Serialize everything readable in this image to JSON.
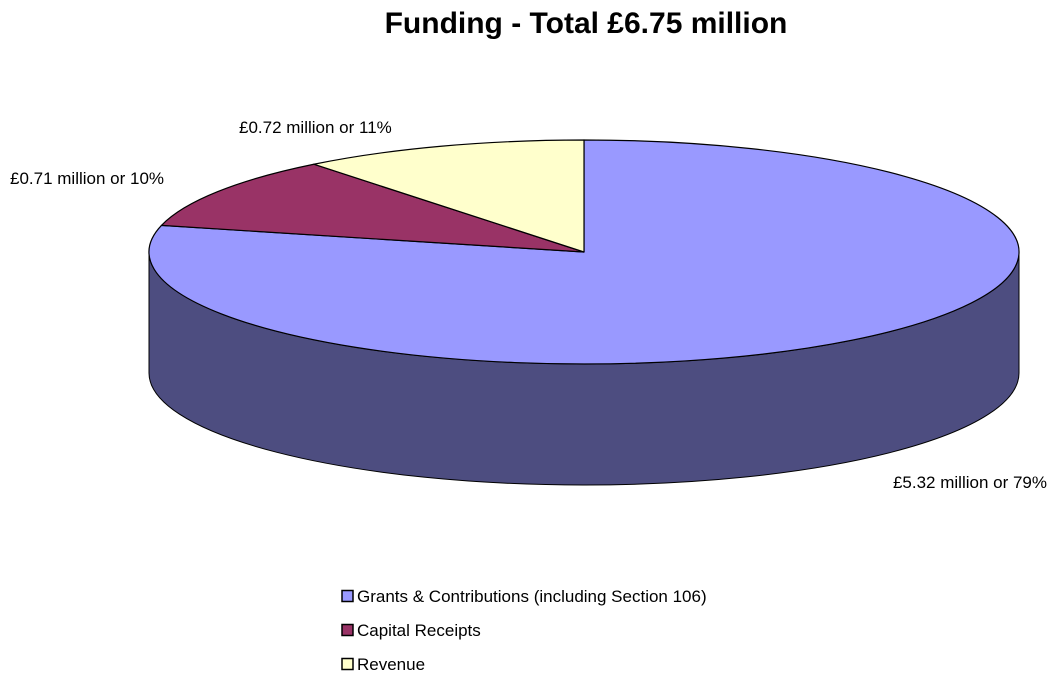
{
  "chart_data": {
    "type": "pie",
    "title": "Funding - Total £6.75 million",
    "units": "£ million",
    "legend_position": "bottom",
    "slices": [
      {
        "name": "Grants & Contributions (including Section 106)",
        "value": 5.32,
        "percent": 79,
        "label": "£5.32 million or 79%",
        "color": "#9999FF",
        "side_color": "#4D4D80"
      },
      {
        "name": "Capital Receipts",
        "value": 0.71,
        "percent": 10,
        "label": "£0.71 million or 10%",
        "color": "#993366",
        "side_color": "#4D1A33"
      },
      {
        "name": "Revenue",
        "value": 0.72,
        "percent": 11,
        "label": "£0.72 million or 11%",
        "color": "#FFFFCC",
        "side_color": "#808066"
      }
    ]
  }
}
